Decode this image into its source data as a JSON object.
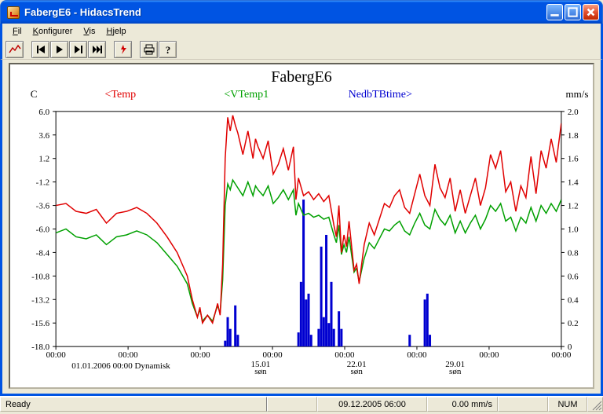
{
  "window": {
    "title": "FabergE6 - HidacsTrend"
  },
  "menu": {
    "file": "Fil",
    "konfig": "Konfigurer",
    "vis": "Vis",
    "hjelp": "Hjelp"
  },
  "status": {
    "ready": "Ready",
    "datetime": "09.12.2005 06:00",
    "value": "0.00 mm/s",
    "num": "NUM"
  },
  "chart": {
    "title": "FabergE6",
    "legend": {
      "temp": {
        "label": "<Temp",
        "color": "#e00000"
      },
      "vtemp": {
        "label": "<VTemp1",
        "color": "#00a000"
      },
      "nedb": {
        "label": "NedbTBtime>",
        "color": "#0000d0"
      }
    },
    "y_left": {
      "unit": "C",
      "color": "#000",
      "min": -18,
      "max": 6,
      "ticks": [
        -18,
        -15.6,
        -13.2,
        -10.8,
        -8.4,
        -6.0,
        -3.6,
        -1.2,
        1.2,
        3.6,
        6.0
      ],
      "tick_labels": [
        "-18.0",
        "-15.6",
        "-13.2",
        "-10.8",
        "-8.4",
        "-6.0",
        "-3.6",
        "-1.2",
        "1.2",
        "3.6",
        "6.0"
      ]
    },
    "y_right": {
      "unit": "mm/s",
      "color": "#000",
      "min": 0,
      "max": 2,
      "ticks": [
        0,
        0.2,
        0.4,
        0.6,
        0.8,
        1.0,
        1.2,
        1.4,
        1.6,
        1.8,
        2.0
      ],
      "tick_labels": [
        "0",
        "0.2",
        "0.4",
        "0.6",
        "0.8",
        "1.0",
        "1.2",
        "1.4",
        "1.6",
        "1.8",
        "2.0"
      ]
    },
    "x_axis": {
      "tick_labels": [
        "00:00",
        "00:00",
        "00:00",
        "00:00",
        "00:00",
        "00:00",
        "00:00",
        "00:00"
      ],
      "note": "01.01.2006 00:00 Dynamisk",
      "sub_labels": [
        {
          "pos": 0.405,
          "l1": "15.01",
          "l2": "søn"
        },
        {
          "pos": 0.595,
          "l1": "22.01",
          "l2": "søn"
        },
        {
          "pos": 0.79,
          "l1": "29.01",
          "l2": "søn"
        }
      ]
    },
    "plotarea": {
      "bg": "#ffffff",
      "border": "#000000"
    },
    "series_temp": {
      "color": "#e00000",
      "points": [
        [
          0,
          -3.6
        ],
        [
          0.02,
          -3.4
        ],
        [
          0.04,
          -4.2
        ],
        [
          0.06,
          -4.4
        ],
        [
          0.08,
          -4.0
        ],
        [
          0.1,
          -5.4
        ],
        [
          0.12,
          -4.4
        ],
        [
          0.14,
          -4.2
        ],
        [
          0.16,
          -3.8
        ],
        [
          0.18,
          -4.4
        ],
        [
          0.2,
          -5.4
        ],
        [
          0.22,
          -6.8
        ],
        [
          0.24,
          -8.4
        ],
        [
          0.26,
          -10.8
        ],
        [
          0.27,
          -13.2
        ],
        [
          0.28,
          -15.0
        ],
        [
          0.285,
          -14.0
        ],
        [
          0.29,
          -15.6
        ],
        [
          0.3,
          -14.8
        ],
        [
          0.31,
          -15.6
        ],
        [
          0.32,
          -13.6
        ],
        [
          0.325,
          -14.8
        ],
        [
          0.33,
          -9.6
        ],
        [
          0.335,
          1.2
        ],
        [
          0.34,
          5.4
        ],
        [
          0.345,
          4.0
        ],
        [
          0.35,
          5.6
        ],
        [
          0.355,
          4.6
        ],
        [
          0.36,
          3.8
        ],
        [
          0.37,
          1.6
        ],
        [
          0.38,
          4.0
        ],
        [
          0.39,
          1.2
        ],
        [
          0.395,
          3.2
        ],
        [
          0.4,
          2.4
        ],
        [
          0.41,
          1.2
        ],
        [
          0.42,
          3.0
        ],
        [
          0.43,
          -0.4
        ],
        [
          0.44,
          0.6
        ],
        [
          0.45,
          2.2
        ],
        [
          0.46,
          0.0
        ],
        [
          0.47,
          2.4
        ],
        [
          0.475,
          -3.0
        ],
        [
          0.48,
          -0.8
        ],
        [
          0.49,
          -2.6
        ],
        [
          0.5,
          -2.2
        ],
        [
          0.51,
          -3.0
        ],
        [
          0.52,
          -2.4
        ],
        [
          0.53,
          -3.2
        ],
        [
          0.54,
          -2.6
        ],
        [
          0.55,
          -5.6
        ],
        [
          0.555,
          -6.8
        ],
        [
          0.56,
          -3.6
        ],
        [
          0.565,
          -8.4
        ],
        [
          0.57,
          -6.6
        ],
        [
          0.575,
          -7.8
        ],
        [
          0.58,
          -5.2
        ],
        [
          0.59,
          -10.2
        ],
        [
          0.595,
          -9.6
        ],
        [
          0.6,
          -11.6
        ],
        [
          0.61,
          -7.6
        ],
        [
          0.62,
          -5.4
        ],
        [
          0.63,
          -6.6
        ],
        [
          0.64,
          -5.0
        ],
        [
          0.65,
          -3.4
        ],
        [
          0.66,
          -3.8
        ],
        [
          0.67,
          -2.6
        ],
        [
          0.68,
          -2.0
        ],
        [
          0.69,
          -3.8
        ],
        [
          0.7,
          -4.4
        ],
        [
          0.71,
          -2.4
        ],
        [
          0.72,
          -0.4
        ],
        [
          0.73,
          -2.6
        ],
        [
          0.74,
          -3.6
        ],
        [
          0.75,
          0.6
        ],
        [
          0.76,
          -1.8
        ],
        [
          0.77,
          -2.8
        ],
        [
          0.78,
          -0.8
        ],
        [
          0.79,
          -4.2
        ],
        [
          0.8,
          -2.0
        ],
        [
          0.81,
          -4.4
        ],
        [
          0.82,
          -2.6
        ],
        [
          0.83,
          -0.8
        ],
        [
          0.84,
          -3.6
        ],
        [
          0.85,
          -1.8
        ],
        [
          0.86,
          1.6
        ],
        [
          0.87,
          0.2
        ],
        [
          0.88,
          2.0
        ],
        [
          0.89,
          -2.2
        ],
        [
          0.9,
          -1.2
        ],
        [
          0.91,
          -4.2
        ],
        [
          0.92,
          -1.6
        ],
        [
          0.93,
          -2.8
        ],
        [
          0.94,
          1.4
        ],
        [
          0.95,
          -2.4
        ],
        [
          0.96,
          2.0
        ],
        [
          0.97,
          0.2
        ],
        [
          0.98,
          3.2
        ],
        [
          0.99,
          0.8
        ],
        [
          1.0,
          4.8
        ]
      ]
    },
    "series_vtemp": {
      "color": "#00a000",
      "points": [
        [
          0,
          -6.4
        ],
        [
          0.02,
          -6.0
        ],
        [
          0.04,
          -6.8
        ],
        [
          0.06,
          -7.0
        ],
        [
          0.08,
          -6.6
        ],
        [
          0.1,
          -7.6
        ],
        [
          0.12,
          -6.8
        ],
        [
          0.14,
          -6.6
        ],
        [
          0.16,
          -6.2
        ],
        [
          0.18,
          -6.6
        ],
        [
          0.2,
          -7.4
        ],
        [
          0.22,
          -8.6
        ],
        [
          0.24,
          -9.8
        ],
        [
          0.26,
          -11.6
        ],
        [
          0.27,
          -13.6
        ],
        [
          0.28,
          -15.0
        ],
        [
          0.285,
          -14.2
        ],
        [
          0.29,
          -15.4
        ],
        [
          0.3,
          -14.8
        ],
        [
          0.31,
          -15.4
        ],
        [
          0.32,
          -13.8
        ],
        [
          0.325,
          -14.6
        ],
        [
          0.33,
          -11.2
        ],
        [
          0.335,
          -3.6
        ],
        [
          0.34,
          -1.4
        ],
        [
          0.345,
          -2.0
        ],
        [
          0.35,
          -1.0
        ],
        [
          0.355,
          -1.4
        ],
        [
          0.36,
          -1.8
        ],
        [
          0.37,
          -2.6
        ],
        [
          0.38,
          -1.2
        ],
        [
          0.39,
          -2.6
        ],
        [
          0.395,
          -1.6
        ],
        [
          0.4,
          -2.0
        ],
        [
          0.41,
          -2.6
        ],
        [
          0.42,
          -1.6
        ],
        [
          0.43,
          -3.4
        ],
        [
          0.44,
          -2.8
        ],
        [
          0.45,
          -2.0
        ],
        [
          0.46,
          -3.0
        ],
        [
          0.47,
          -2.0
        ],
        [
          0.475,
          -4.6
        ],
        [
          0.48,
          -3.4
        ],
        [
          0.49,
          -4.6
        ],
        [
          0.5,
          -4.4
        ],
        [
          0.51,
          -4.8
        ],
        [
          0.52,
          -4.6
        ],
        [
          0.53,
          -5.0
        ],
        [
          0.54,
          -4.8
        ],
        [
          0.55,
          -6.6
        ],
        [
          0.555,
          -7.4
        ],
        [
          0.56,
          -5.6
        ],
        [
          0.565,
          -8.6
        ],
        [
          0.57,
          -7.6
        ],
        [
          0.575,
          -8.4
        ],
        [
          0.58,
          -6.8
        ],
        [
          0.59,
          -10.4
        ],
        [
          0.595,
          -10.0
        ],
        [
          0.6,
          -11.4
        ],
        [
          0.61,
          -9.0
        ],
        [
          0.62,
          -7.4
        ],
        [
          0.63,
          -8.0
        ],
        [
          0.64,
          -7.0
        ],
        [
          0.65,
          -6.0
        ],
        [
          0.66,
          -6.2
        ],
        [
          0.67,
          -5.6
        ],
        [
          0.68,
          -5.2
        ],
        [
          0.69,
          -6.2
        ],
        [
          0.7,
          -6.6
        ],
        [
          0.71,
          -5.4
        ],
        [
          0.72,
          -4.4
        ],
        [
          0.73,
          -5.6
        ],
        [
          0.74,
          -6.0
        ],
        [
          0.75,
          -4.0
        ],
        [
          0.76,
          -5.0
        ],
        [
          0.77,
          -5.6
        ],
        [
          0.78,
          -4.6
        ],
        [
          0.79,
          -6.4
        ],
        [
          0.8,
          -5.2
        ],
        [
          0.81,
          -6.4
        ],
        [
          0.82,
          -5.4
        ],
        [
          0.83,
          -4.6
        ],
        [
          0.84,
          -6.0
        ],
        [
          0.85,
          -5.0
        ],
        [
          0.86,
          -3.6
        ],
        [
          0.87,
          -4.2
        ],
        [
          0.88,
          -3.4
        ],
        [
          0.89,
          -5.2
        ],
        [
          0.9,
          -4.8
        ],
        [
          0.91,
          -6.2
        ],
        [
          0.92,
          -4.8
        ],
        [
          0.93,
          -5.4
        ],
        [
          0.94,
          -3.8
        ],
        [
          0.95,
          -5.2
        ],
        [
          0.96,
          -3.6
        ],
        [
          0.97,
          -4.4
        ],
        [
          0.98,
          -3.4
        ],
        [
          0.99,
          -4.2
        ],
        [
          1.0,
          -3.0
        ]
      ]
    },
    "series_nedb": {
      "color": "#0000d0",
      "bars": [
        [
          0.335,
          0.05
        ],
        [
          0.34,
          0.25
        ],
        [
          0.345,
          0.15
        ],
        [
          0.355,
          0.35
        ],
        [
          0.36,
          0.1
        ],
        [
          0.48,
          0.12
        ],
        [
          0.485,
          0.55
        ],
        [
          0.49,
          1.25
        ],
        [
          0.495,
          0.4
        ],
        [
          0.5,
          0.45
        ],
        [
          0.505,
          0.1
        ],
        [
          0.52,
          0.15
        ],
        [
          0.525,
          0.85
        ],
        [
          0.53,
          0.25
        ],
        [
          0.535,
          0.95
        ],
        [
          0.54,
          0.2
        ],
        [
          0.545,
          0.55
        ],
        [
          0.55,
          0.15
        ],
        [
          0.56,
          0.3
        ],
        [
          0.565,
          0.15
        ],
        [
          0.7,
          0.1
        ],
        [
          0.73,
          0.4
        ],
        [
          0.735,
          0.45
        ],
        [
          0.74,
          0.1
        ]
      ]
    }
  }
}
